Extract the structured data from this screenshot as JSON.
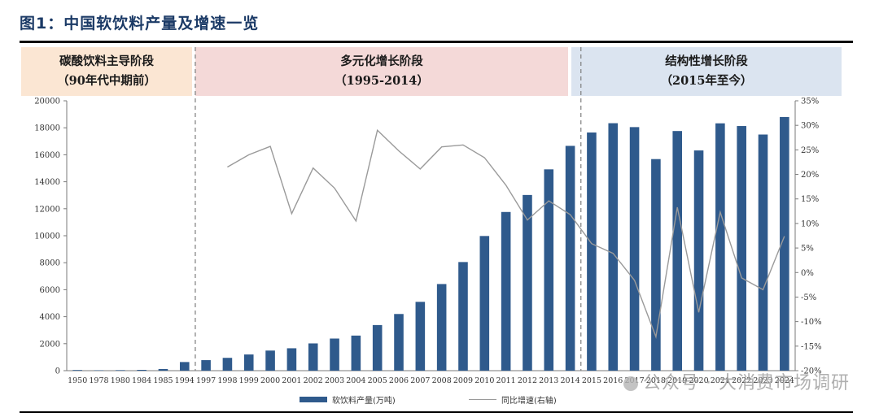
{
  "figure": {
    "title": "图1：中国软饮料产量及增速一览"
  },
  "phases": [
    {
      "line1": "碳酸饮料主导阶段",
      "line2": "（90年代中期前）"
    },
    {
      "line1": "多元化增长阶段",
      "line2": "（1995-2014）"
    },
    {
      "line1": "结构性增长阶段",
      "line2": "（2015年至今）"
    }
  ],
  "watermark": "公众号 · 大消费市场调研",
  "colors": {
    "bar": "#2f5a8c",
    "line": "#9a9a9a",
    "phase1": "#fbe6d3",
    "phase2": "#f4d9d8",
    "phase3": "#dbe4f0"
  },
  "chart_data": {
    "type": "bar",
    "categories": [
      "1950",
      "1978",
      "1980",
      "1984",
      "1985",
      "1994",
      "1997",
      "1998",
      "1999",
      "2000",
      "2001",
      "2002",
      "2003",
      "2004",
      "2005",
      "2006",
      "2007",
      "2008",
      "2009",
      "2010",
      "2011",
      "2012",
      "2013",
      "2014",
      "2015",
      "2016",
      "2017",
      "2018",
      "2019",
      "2020",
      "2021",
      "2022",
      "2023",
      "2024"
    ],
    "series": [
      {
        "name": "软饮料产量(万吨)",
        "type": "bar",
        "axis": "left",
        "values": [
          50,
          30,
          40,
          60,
          120,
          640,
          780,
          950,
          1200,
          1490,
          1660,
          2020,
          2380,
          2600,
          3380,
          4200,
          5100,
          6420,
          8050,
          9980,
          11760,
          13020,
          14920,
          16660,
          17650,
          18340,
          18050,
          15680,
          17760,
          16320,
          18330,
          18130,
          17500,
          18800
        ]
      },
      {
        "name": "同比增速(右轴)",
        "type": "line",
        "axis": "right",
        "unit": "%",
        "values": [
          null,
          null,
          null,
          null,
          null,
          null,
          null,
          21.5,
          24,
          25.7,
          12,
          21.3,
          17.2,
          10.5,
          29,
          24.8,
          21.1,
          25.6,
          26,
          23.4,
          17.8,
          10.7,
          14.6,
          11.8,
          5.9,
          3.9,
          -1.6,
          -13.1,
          13.3,
          -8.1,
          12.3,
          -1.1,
          -3.5,
          7.4
        ]
      }
    ],
    "yLeft": {
      "min": 0,
      "max": 20000,
      "step": 2000
    },
    "yRight": {
      "min": -20,
      "max": 35,
      "step": 5
    },
    "dividers_after": [
      "1994",
      "2014"
    ],
    "legend_position": "bottom",
    "grid": false
  }
}
